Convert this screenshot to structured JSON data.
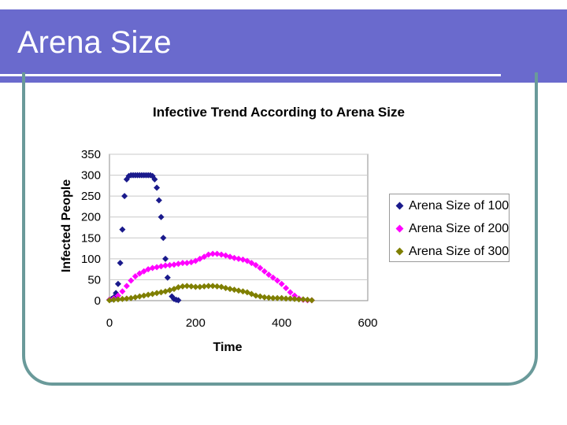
{
  "slide": {
    "title": "Arena Size",
    "colors": {
      "title_bar": "#6a6acd",
      "frame": "#6a9a9a"
    }
  },
  "chart_data": {
    "type": "scatter",
    "title": "Infective Trend According to Arena Size",
    "xlabel": "Time",
    "ylabel": "Infected People",
    "xlim": [
      0,
      600
    ],
    "ylim": [
      0,
      350
    ],
    "xticks": [
      0,
      200,
      400,
      600
    ],
    "yticks": [
      0,
      50,
      100,
      150,
      200,
      250,
      300,
      350
    ],
    "grid": "horizontal",
    "legend_position": "right",
    "marker": "diamond",
    "series": [
      {
        "name": "Arena Size of 100",
        "color": "#1a1a8c",
        "x": [
          0,
          5,
          10,
          15,
          20,
          25,
          30,
          35,
          40,
          45,
          50,
          55,
          60,
          65,
          70,
          75,
          80,
          85,
          90,
          95,
          100,
          105,
          110,
          115,
          120,
          125,
          130,
          135,
          140,
          145,
          150,
          155,
          160
        ],
        "y": [
          2,
          4,
          8,
          18,
          40,
          90,
          170,
          250,
          290,
          298,
          300,
          300,
          300,
          300,
          300,
          300,
          300,
          300,
          300,
          300,
          298,
          290,
          270,
          240,
          200,
          150,
          100,
          55,
          25,
          10,
          4,
          2,
          1
        ]
      },
      {
        "name": "Arena Size of 200",
        "color": "#ff00ff",
        "x": [
          0,
          10,
          20,
          30,
          40,
          50,
          60,
          70,
          80,
          90,
          100,
          110,
          120,
          130,
          140,
          150,
          160,
          170,
          180,
          190,
          200,
          210,
          220,
          230,
          240,
          250,
          260,
          270,
          280,
          290,
          300,
          310,
          320,
          330,
          340,
          350,
          360,
          370,
          380,
          390,
          400,
          410,
          420,
          430,
          440,
          450,
          460,
          470
        ],
        "y": [
          2,
          5,
          12,
          22,
          35,
          48,
          58,
          65,
          70,
          75,
          78,
          80,
          82,
          84,
          85,
          86,
          88,
          90,
          90,
          92,
          95,
          100,
          105,
          110,
          112,
          112,
          110,
          108,
          105,
          102,
          100,
          98,
          95,
          90,
          85,
          78,
          70,
          62,
          55,
          48,
          40,
          30,
          20,
          12,
          5,
          2,
          1,
          1
        ]
      },
      {
        "name": "Arena Size of 300",
        "color": "#7f7f00",
        "x": [
          0,
          10,
          20,
          30,
          40,
          50,
          60,
          70,
          80,
          90,
          100,
          110,
          120,
          130,
          140,
          150,
          160,
          170,
          180,
          190,
          200,
          210,
          220,
          230,
          240,
          250,
          260,
          270,
          280,
          290,
          300,
          310,
          320,
          330,
          340,
          350,
          360,
          370,
          380,
          390,
          400,
          410,
          420,
          430,
          440,
          450,
          460,
          470
        ],
        "y": [
          1,
          2,
          3,
          4,
          5,
          6,
          8,
          10,
          12,
          14,
          16,
          18,
          20,
          22,
          25,
          28,
          32,
          34,
          35,
          34,
          33,
          33,
          34,
          35,
          35,
          34,
          33,
          30,
          28,
          26,
          24,
          22,
          20,
          16,
          12,
          10,
          8,
          7,
          6,
          6,
          6,
          5,
          5,
          4,
          3,
          3,
          2,
          1
        ]
      }
    ]
  }
}
